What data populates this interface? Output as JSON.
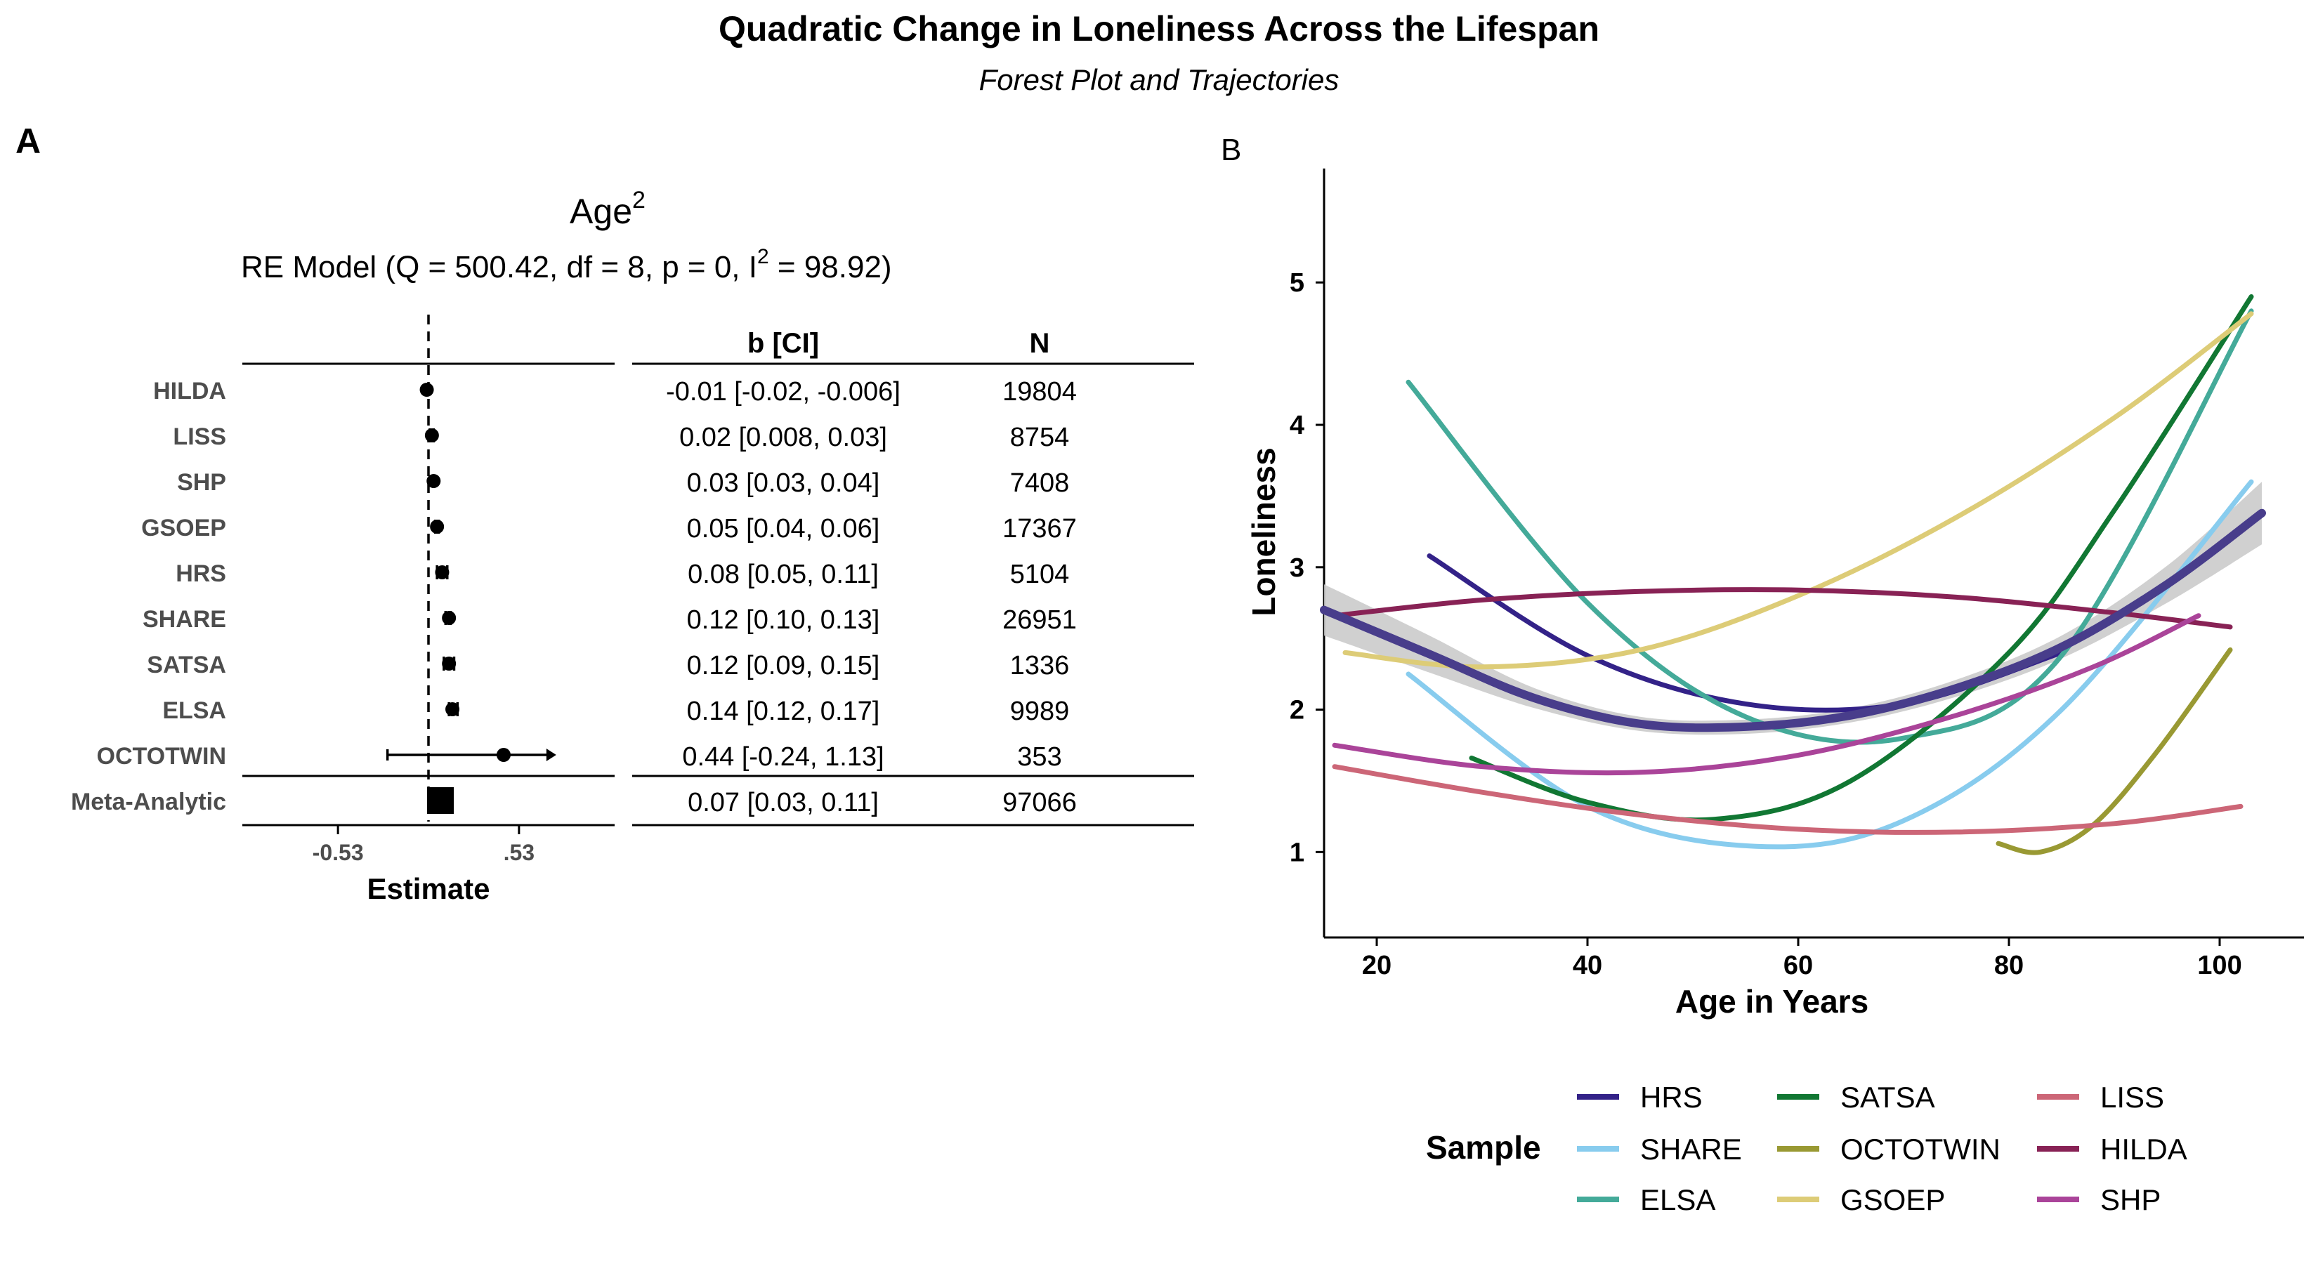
{
  "figure": {
    "title": "Quadratic Change in Loneliness Across the Lifespan",
    "subtitle": "Forest Plot and Trajectories",
    "panel_a_tag": "A",
    "panel_b_tag": "B"
  },
  "colors": {
    "HRS": "#332288",
    "SHARE": "#88CCEE",
    "ELSA": "#44AA99",
    "SATSA": "#117733",
    "OCTOTWIN": "#999933",
    "GSOEP": "#DDCC77",
    "LISS": "#CC6677",
    "HILDA": "#882255",
    "SHP": "#AA4499",
    "meta": "#483D8B",
    "ribbon": "#C8C8C8"
  },
  "chart_data": [
    {
      "type": "forest",
      "panel": "A",
      "title": "Age",
      "title_superscript": "2",
      "model_text_pre": "RE Model (Q = 500.42, df = 8, p = 0, I",
      "model_text_sup": "2",
      "model_text_post": " = 98.92)",
      "column_headers": {
        "b_ci": "b [CI]",
        "n": "N"
      },
      "xlabel": "Estimate",
      "xticks": [
        -0.53,
        0.53
      ],
      "xtick_labels": [
        "-0.53",
        ".53"
      ],
      "xlim": [
        -1.09,
        1.09
      ],
      "reference_line": 0,
      "rows": [
        {
          "study": "HILDA",
          "estimate": -0.01,
          "lower": -0.02,
          "upper": -0.006,
          "ci_text": "-0.01 [-0.02, -0.006]",
          "n": "19804"
        },
        {
          "study": "LISS",
          "estimate": 0.02,
          "lower": 0.008,
          "upper": 0.03,
          "ci_text": "0.02 [0.008, 0.03]",
          "n": "8754"
        },
        {
          "study": "SHP",
          "estimate": 0.03,
          "lower": 0.03,
          "upper": 0.04,
          "ci_text": "0.03 [0.03, 0.04]",
          "n": "7408"
        },
        {
          "study": "GSOEP",
          "estimate": 0.05,
          "lower": 0.04,
          "upper": 0.06,
          "ci_text": "0.05 [0.04, 0.06]",
          "n": "17367"
        },
        {
          "study": "HRS",
          "estimate": 0.08,
          "lower": 0.05,
          "upper": 0.11,
          "ci_text": "0.08 [0.05, 0.11]",
          "n": "5104"
        },
        {
          "study": "SHARE",
          "estimate": 0.12,
          "lower": 0.1,
          "upper": 0.13,
          "ci_text": "0.12 [0.10, 0.13]",
          "n": "26951"
        },
        {
          "study": "SATSA",
          "estimate": 0.12,
          "lower": 0.09,
          "upper": 0.15,
          "ci_text": "0.12 [0.09, 0.15]",
          "n": "1336"
        },
        {
          "study": "ELSA",
          "estimate": 0.14,
          "lower": 0.12,
          "upper": 0.17,
          "ci_text": "0.14 [0.12, 0.17]",
          "n": "9989"
        },
        {
          "study": "OCTOTWIN",
          "estimate": 0.44,
          "lower": -0.24,
          "upper": 1.13,
          "ci_text": "0.44 [-0.24, 1.13]",
          "n": "353"
        }
      ],
      "meta": {
        "study": "Meta-Analytic",
        "estimate": 0.07,
        "lower": 0.03,
        "upper": 0.11,
        "ci_text": "0.07 [0.03, 0.11]",
        "n": "97066"
      }
    },
    {
      "type": "line",
      "panel": "B",
      "xlabel": "Age in Years",
      "ylabel": "Loneliness",
      "xlim": [
        15,
        108
      ],
      "ylim": [
        0.4,
        5.8
      ],
      "xticks": [
        20,
        40,
        60,
        80,
        100
      ],
      "yticks": [
        1,
        2,
        3,
        4,
        5
      ],
      "legend_title": "Sample",
      "legend_position": "bottom",
      "series": [
        {
          "name": "HRS",
          "x": [
            25,
            40,
            55,
            70,
            85
          ],
          "y": [
            3.08,
            2.38,
            2.04,
            2.04,
            2.4
          ]
        },
        {
          "name": "SHARE",
          "x": [
            23,
            40,
            56,
            70,
            85,
            103
          ],
          "y": [
            2.25,
            1.32,
            1.04,
            1.22,
            2.0,
            3.6
          ]
        },
        {
          "name": "ELSA",
          "x": [
            23,
            40,
            55,
            70,
            85,
            103
          ],
          "y": [
            4.3,
            2.75,
            1.95,
            1.8,
            2.38,
            4.8
          ]
        },
        {
          "name": "SATSA",
          "x": [
            29,
            40,
            52,
            65,
            80,
            90,
            103
          ],
          "y": [
            1.66,
            1.35,
            1.23,
            1.5,
            2.4,
            3.4,
            4.9
          ]
        },
        {
          "name": "OCTOTWIN",
          "x": [
            79,
            83,
            88,
            94,
            101
          ],
          "y": [
            1.06,
            1.0,
            1.19,
            1.7,
            2.42
          ]
        },
        {
          "name": "GSOEP",
          "x": [
            17,
            30,
            45,
            60,
            75,
            90,
            103
          ],
          "y": [
            2.4,
            2.3,
            2.42,
            2.8,
            3.35,
            4.05,
            4.78
          ]
        },
        {
          "name": "LISS",
          "x": [
            16,
            30,
            45,
            60,
            75,
            90,
            102
          ],
          "y": [
            1.6,
            1.42,
            1.26,
            1.16,
            1.14,
            1.2,
            1.32
          ]
        },
        {
          "name": "HILDA",
          "x": [
            16,
            30,
            45,
            60,
            75,
            90,
            101
          ],
          "y": [
            2.66,
            2.77,
            2.83,
            2.84,
            2.79,
            2.68,
            2.58
          ]
        },
        {
          "name": "SHP",
          "x": [
            16,
            30,
            45,
            60,
            75,
            88,
            98
          ],
          "y": [
            1.75,
            1.6,
            1.56,
            1.68,
            1.96,
            2.3,
            2.66
          ]
        }
      ],
      "meta_curve": {
        "x": [
          15,
          25,
          35,
          45,
          55,
          65,
          75,
          85,
          95,
          104
        ],
        "y": [
          2.7,
          2.39,
          2.08,
          1.9,
          1.88,
          1.96,
          2.15,
          2.44,
          2.88,
          3.38
        ]
      },
      "meta_ribbon_halfwidth": [
        0.18,
        0.13,
        0.07,
        0.05,
        0.05,
        0.05,
        0.06,
        0.08,
        0.13,
        0.22
      ],
      "legend_order": [
        "HRS",
        "SATSA",
        "LISS",
        "SHARE",
        "OCTOTWIN",
        "HILDA",
        "ELSA",
        "GSOEP",
        "SHP"
      ]
    }
  ]
}
